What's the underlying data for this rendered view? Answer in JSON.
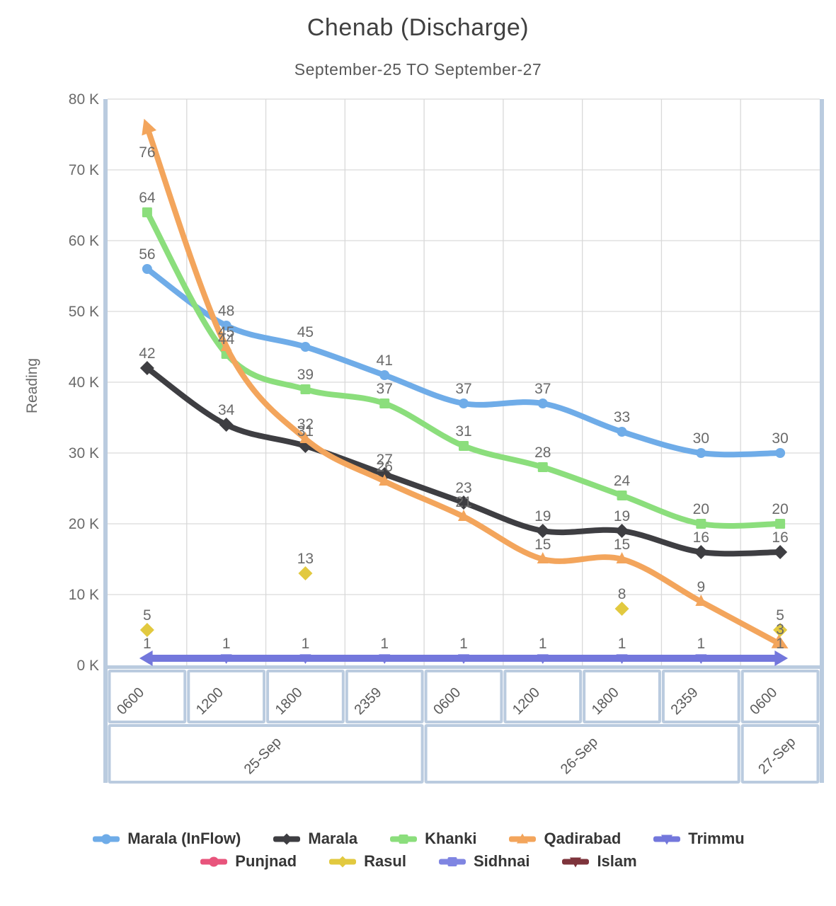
{
  "page": {
    "title": "Chenab (Discharge)",
    "subtitle": "September-25 TO September-27"
  },
  "chart_data": {
    "type": "line",
    "title": "Chenab (Discharge)",
    "subtitle": "September-25 TO September-27",
    "ylabel": "Reading",
    "xlabel": "",
    "unit_suffix": "K",
    "ylim": [
      0,
      80000
    ],
    "values_in_thousands": true,
    "grid": true,
    "legend_position": "bottom",
    "y_tick_labels": [
      "0 K",
      "10 K",
      "20 K",
      "30 K",
      "40 K",
      "50 K",
      "60 K",
      "70 K",
      "80 K"
    ],
    "x_hour_labels": [
      "0600",
      "1200",
      "1800",
      "2359",
      "0600",
      "1200",
      "1800",
      "2359",
      "0600"
    ],
    "date_groups": [
      {
        "label": "25-Sep",
        "span": 4
      },
      {
        "label": "26-Sep",
        "span": 4
      },
      {
        "label": "27-Sep",
        "span": 1
      }
    ],
    "series": [
      {
        "name": "Marala (InFlow)",
        "color": "#6FACE8",
        "marker": "circle",
        "values": [
          56,
          48,
          45,
          41,
          37,
          37,
          33,
          30,
          30
        ]
      },
      {
        "name": "Marala",
        "color": "#3E3E42",
        "marker": "diamond",
        "values": [
          42,
          34,
          31,
          27,
          23,
          19,
          19,
          16,
          16
        ]
      },
      {
        "name": "Khanki",
        "color": "#8BDE7C",
        "marker": "square",
        "values": [
          64,
          44,
          39,
          37,
          31,
          28,
          24,
          20,
          20
        ]
      },
      {
        "name": "Qadirabad",
        "color": "#F3A55C",
        "marker": "triangle-up",
        "values": [
          76,
          45,
          32,
          26,
          21,
          15,
          15,
          9,
          3
        ],
        "label_offsets": {
          "0": [
            0,
            56
          ]
        }
      },
      {
        "name": "Trimmu",
        "color": "#7377DC",
        "marker": "triangle-down",
        "line_width": 10,
        "values": [
          1,
          1,
          1,
          1,
          1,
          1,
          1,
          1,
          1
        ]
      },
      {
        "name": "Punjnad",
        "color": "#E8547C",
        "marker": "circle",
        "values": []
      },
      {
        "name": "Rasul",
        "color": "#E2C93F",
        "marker": "diamond",
        "marker_size": 8,
        "values": [
          5,
          null,
          13,
          null,
          null,
          null,
          8,
          null,
          5
        ]
      },
      {
        "name": "Sidhnai",
        "color": "#7F85E2",
        "marker": "square",
        "values": []
      },
      {
        "name": "Islam",
        "color": "#7E343C",
        "marker": "triangle-down",
        "values": []
      }
    ],
    "legend_rows": [
      [
        "Marala (InFlow)",
        "Marala",
        "Khanki",
        "Qadirabad",
        "Trimmu"
      ],
      [
        "Punjnad",
        "Rasul",
        "Sidhnai",
        "Islam"
      ]
    ]
  },
  "style": {
    "grid_color": "#D9D9D9",
    "frame_color": "#BACBDF",
    "label_color": "#6A6A6A"
  }
}
